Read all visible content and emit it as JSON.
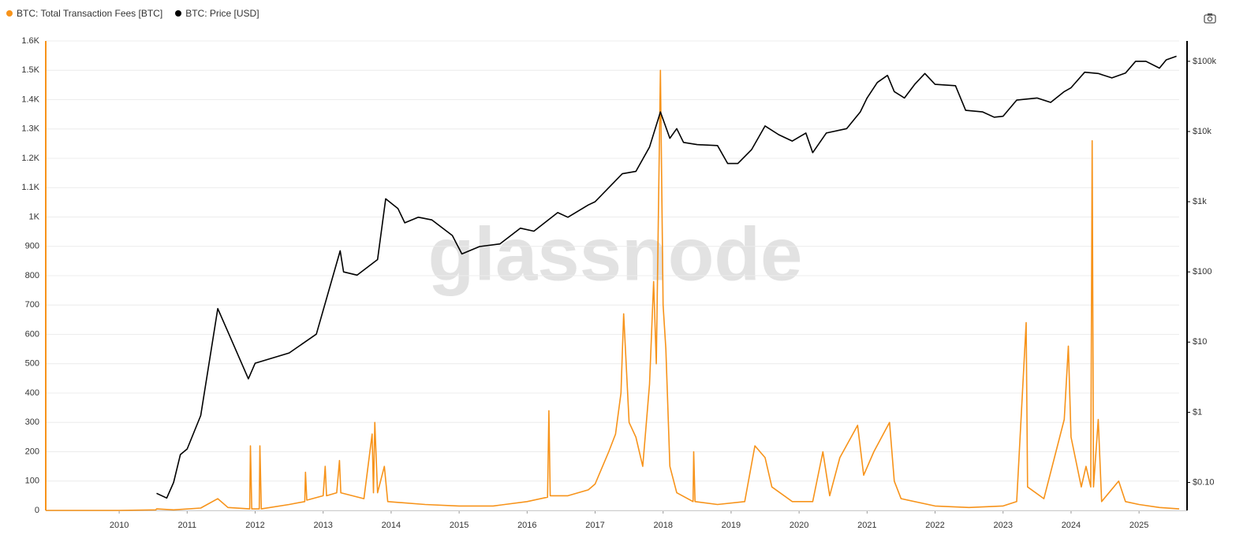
{
  "chart_data": {
    "type": "line",
    "watermark": "glassnode",
    "xlim": [
      2008.92,
      2025.59
    ],
    "xticks": [
      2010,
      2011,
      2012,
      2013,
      2014,
      2015,
      2016,
      2017,
      2018,
      2019,
      2020,
      2021,
      2022,
      2023,
      2024,
      2025
    ],
    "ylim": [
      0,
      1600
    ],
    "yticks": [
      0,
      100,
      200,
      300,
      400,
      500,
      600,
      700,
      800,
      900,
      {
        "value": 1000,
        "label": "1K"
      },
      {
        "value": 1100,
        "label": "1.1K"
      },
      {
        "value": 1200,
        "label": "1.2K"
      },
      {
        "value": 1300,
        "label": "1.3K"
      },
      {
        "value": 1400,
        "label": "1.4K"
      },
      {
        "value": 1500,
        "label": "1.5K"
      },
      {
        "value": 1600,
        "label": "1.6K"
      }
    ],
    "y2lim": [
      0.04,
      195000
    ],
    "y2scale": "log",
    "y2ticks": [
      {
        "value": 0.1,
        "label": "$0.10"
      },
      {
        "value": 1,
        "label": "$1"
      },
      {
        "value": 10,
        "label": "$10"
      },
      {
        "value": 100,
        "label": "$100"
      },
      {
        "value": 1000,
        "label": "$1k"
      },
      {
        "value": 10000,
        "label": "$10k"
      },
      {
        "value": 100000,
        "label": "$100k"
      }
    ],
    "grid": true,
    "legend": "top-left",
    "series": [
      {
        "name": "BTC: Total Transaction Fees [BTC]",
        "color": "#f7931a",
        "axis": "y",
        "x": [
          2008.92,
          2010.0,
          2010.54,
          2010.55,
          2010.8,
          2011.2,
          2011.45,
          2011.6,
          2011.92,
          2011.93,
          2011.95,
          2012.06,
          2012.07,
          2012.09,
          2012.5,
          2012.73,
          2012.74,
          2012.76,
          2013.0,
          2013.03,
          2013.05,
          2013.2,
          2013.24,
          2013.26,
          2013.6,
          2013.72,
          2013.74,
          2013.76,
          2013.8,
          2013.9,
          2013.95,
          2014.5,
          2015.0,
          2015.5,
          2016.0,
          2016.3,
          2016.32,
          2016.34,
          2016.6,
          2016.9,
          2017.0,
          2017.2,
          2017.3,
          2017.38,
          2017.42,
          2017.5,
          2017.6,
          2017.7,
          2017.8,
          2017.86,
          2017.9,
          2017.96,
          2018.0,
          2018.04,
          2018.1,
          2018.2,
          2018.44,
          2018.45,
          2018.47,
          2018.8,
          2019.2,
          2019.35,
          2019.5,
          2019.6,
          2019.9,
          2020.2,
          2020.35,
          2020.45,
          2020.6,
          2020.86,
          2020.95,
          2021.1,
          2021.33,
          2021.4,
          2021.5,
          2022.0,
          2022.5,
          2023.0,
          2023.2,
          2023.34,
          2023.36,
          2023.6,
          2023.9,
          2023.96,
          2024.0,
          2024.15,
          2024.22,
          2024.29,
          2024.31,
          2024.33,
          2024.4,
          2024.45,
          2024.7,
          2024.8,
          2025.0,
          2025.3,
          2025.59
        ],
        "values": [
          0,
          0,
          2,
          5,
          2,
          8,
          40,
          10,
          5,
          220,
          5,
          5,
          220,
          5,
          20,
          30,
          130,
          35,
          50,
          150,
          50,
          60,
          170,
          60,
          40,
          260,
          60,
          300,
          60,
          150,
          30,
          20,
          15,
          15,
          30,
          45,
          340,
          50,
          50,
          70,
          90,
          200,
          260,
          400,
          670,
          300,
          250,
          150,
          430,
          780,
          500,
          1500,
          700,
          550,
          150,
          60,
          30,
          200,
          30,
          20,
          30,
          220,
          180,
          80,
          30,
          30,
          200,
          50,
          180,
          290,
          120,
          200,
          300,
          100,
          40,
          15,
          10,
          15,
          30,
          640,
          80,
          40,
          310,
          560,
          250,
          80,
          150,
          80,
          1260,
          80,
          310,
          30,
          100,
          30,
          20,
          10,
          5
        ]
      },
      {
        "name": "BTC: Price [USD]",
        "color": "#000000",
        "axis": "y2",
        "x": [
          2010.55,
          2010.7,
          2010.8,
          2010.9,
          2011.0,
          2011.2,
          2011.45,
          2011.6,
          2011.9,
          2012.0,
          2012.5,
          2012.9,
          2013.25,
          2013.3,
          2013.5,
          2013.8,
          2013.92,
          2014.1,
          2014.2,
          2014.4,
          2014.6,
          2014.9,
          2015.04,
          2015.3,
          2015.6,
          2015.9,
          2016.1,
          2016.45,
          2016.6,
          2016.9,
          2017.0,
          2017.4,
          2017.6,
          2017.8,
          2017.96,
          2018.1,
          2018.2,
          2018.3,
          2018.5,
          2018.8,
          2018.95,
          2019.1,
          2019.3,
          2019.5,
          2019.7,
          2019.9,
          2020.1,
          2020.2,
          2020.4,
          2020.7,
          2020.9,
          2021.0,
          2021.15,
          2021.3,
          2021.4,
          2021.55,
          2021.7,
          2021.85,
          2022.0,
          2022.3,
          2022.45,
          2022.7,
          2022.87,
          2023.0,
          2023.2,
          2023.5,
          2023.7,
          2023.9,
          2024.0,
          2024.2,
          2024.4,
          2024.6,
          2024.8,
          2024.95,
          2025.1,
          2025.3,
          2025.4,
          2025.55
        ],
        "values": [
          0.07,
          0.06,
          0.1,
          0.25,
          0.3,
          0.9,
          30,
          14,
          3,
          5,
          7,
          13,
          200,
          100,
          90,
          150,
          1100,
          800,
          500,
          600,
          550,
          330,
          180,
          230,
          250,
          420,
          380,
          700,
          600,
          900,
          1000,
          2500,
          2700,
          6000,
          19000,
          8000,
          11000,
          7000,
          6500,
          6300,
          3500,
          3500,
          5500,
          12000,
          9000,
          7300,
          9500,
          5000,
          9500,
          11000,
          19000,
          30000,
          50000,
          63000,
          37000,
          30000,
          47000,
          67000,
          47000,
          45000,
          20000,
          19000,
          16000,
          16500,
          28000,
          30000,
          26000,
          37000,
          42000,
          70000,
          67000,
          58000,
          68000,
          100000,
          100000,
          80000,
          105000,
          118000
        ]
      }
    ]
  }
}
